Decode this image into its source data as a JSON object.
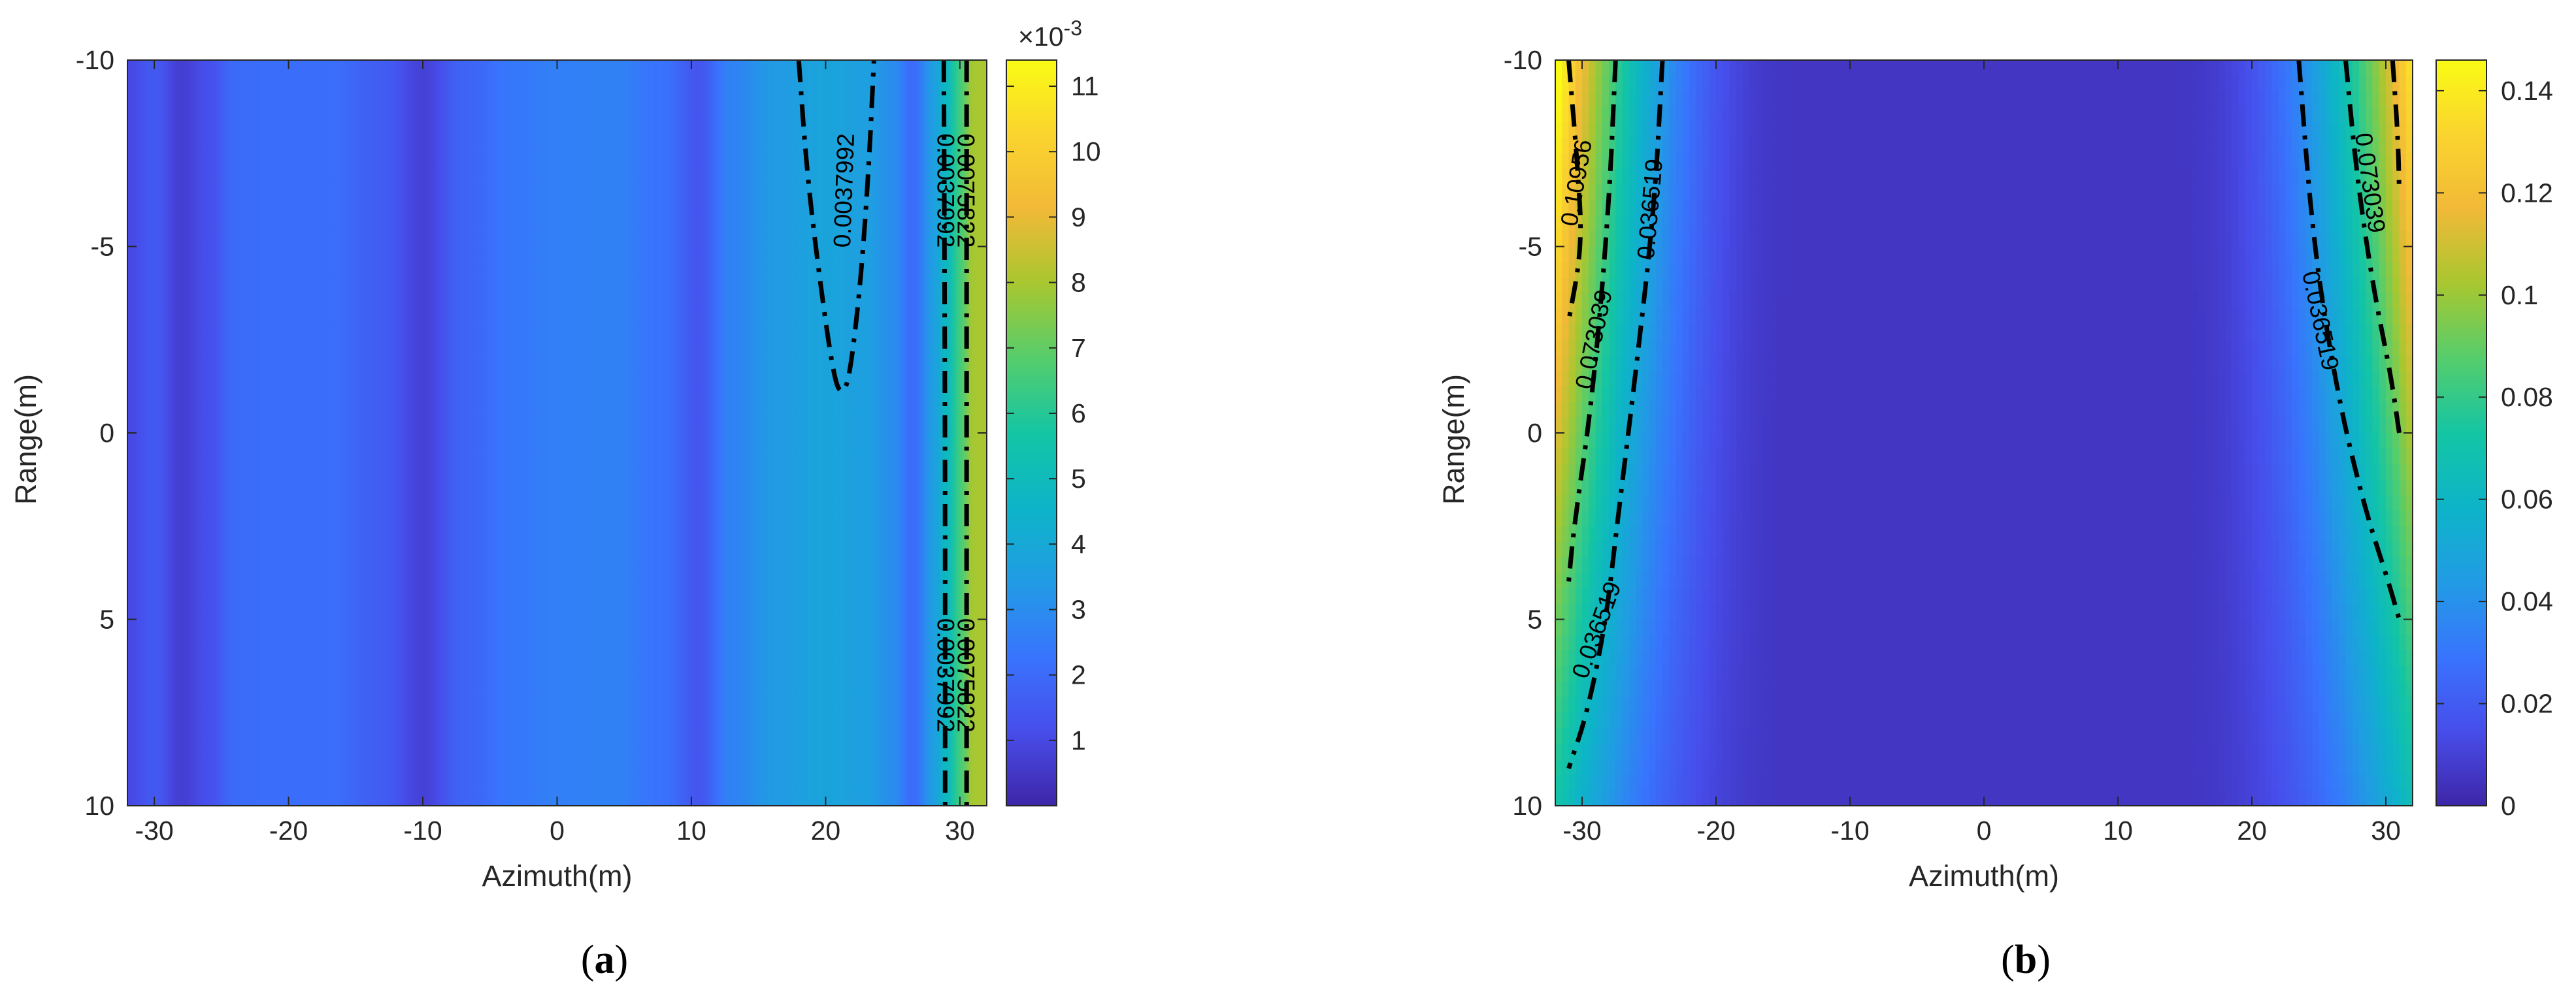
{
  "figure": {
    "panels": [
      {
        "prefix": "(",
        "letter": "a",
        "suffix": ")"
      },
      {
        "prefix": "(",
        "letter": "b",
        "suffix": ")"
      }
    ]
  },
  "chart_data": [
    {
      "type": "heatmap",
      "panel": "a",
      "title": "",
      "xlabel": "Azimuth(m)",
      "ylabel": "Range(m)",
      "xlim": [
        -32,
        32
      ],
      "ylim": [
        -10,
        10
      ],
      "y_direction": "reversed",
      "x_ticks": [
        "-30",
        "-20",
        "-10",
        "0",
        "10",
        "20",
        "30"
      ],
      "y_ticks": [
        "-10",
        "-5",
        "0",
        "5",
        "10"
      ],
      "colorbar": {
        "range": [
          0,
          11.4
        ],
        "ticks": [
          "1",
          "2",
          "3",
          "4",
          "5",
          "6",
          "7",
          "8",
          "9",
          "10",
          "11"
        ],
        "multiplier": "×10",
        "exponent": "-3",
        "colormap": "parula"
      },
      "field_profile_by_azimuth": [
        {
          "x": -32,
          "v": 1.0
        },
        {
          "x": -30,
          "v": 1.5
        },
        {
          "x": -28,
          "v": 0.7
        },
        {
          "x": -26,
          "v": 1.2
        },
        {
          "x": -24,
          "v": 2.0
        },
        {
          "x": -21,
          "v": 2.1
        },
        {
          "x": -17,
          "v": 2.1
        },
        {
          "x": -13,
          "v": 1.6
        },
        {
          "x": -10,
          "v": 0.8
        },
        {
          "x": -7,
          "v": 1.8
        },
        {
          "x": -3,
          "v": 2.4
        },
        {
          "x": 0,
          "v": 2.6
        },
        {
          "x": 4,
          "v": 2.7
        },
        {
          "x": 8,
          "v": 2.2
        },
        {
          "x": 10.5,
          "v": 1.4
        },
        {
          "x": 13,
          "v": 2.7
        },
        {
          "x": 16,
          "v": 3.4
        },
        {
          "x": 20,
          "v": 3.8
        },
        {
          "x": 23,
          "v": 3.6
        },
        {
          "x": 25,
          "v": 3.0
        },
        {
          "x": 26.5,
          "v": 2.0
        },
        {
          "x": 28,
          "v": 3.5
        },
        {
          "x": 29,
          "v": 4.8
        },
        {
          "x": 30,
          "v": 6.5
        },
        {
          "x": 31,
          "v": 8.0
        }
      ],
      "contours": [
        {
          "level": "0.0037992",
          "style": "dash-dot",
          "points": [
            [
              18,
              -10
            ],
            [
              18.6,
              -7
            ],
            [
              19.6,
              -4
            ],
            [
              20.6,
              -1.5
            ],
            [
              21.2,
              -1.0
            ],
            [
              21.8,
              -1.5
            ],
            [
              22.6,
              -4
            ],
            [
              23.2,
              -7
            ],
            [
              23.6,
              -10
            ]
          ]
        },
        {
          "level": "0.0037992",
          "style": "dash-dot",
          "points": [
            [
              28.8,
              -10
            ],
            [
              28.9,
              0
            ],
            [
              28.9,
              10
            ]
          ]
        },
        {
          "level": "0.0075822",
          "style": "dash-dot",
          "points": [
            [
              30.5,
              -10
            ],
            [
              30.5,
              0
            ],
            [
              30.5,
              10
            ]
          ]
        }
      ],
      "contour_labels": [
        {
          "text": "0.0037992",
          "x": 21.5,
          "y": -6.5,
          "rotate": -88
        },
        {
          "text": "0.0037992",
          "x": 28.8,
          "y": -6.5,
          "rotate": 90
        },
        {
          "text": "0.0075822",
          "x": 30.3,
          "y": -6.5,
          "rotate": 90
        },
        {
          "text": "0.0037992",
          "x": 28.8,
          "y": 6.5,
          "rotate": 90
        },
        {
          "text": "0.0075822",
          "x": 30.3,
          "y": 6.5,
          "rotate": 90
        }
      ]
    },
    {
      "type": "heatmap",
      "panel": "b",
      "title": "",
      "xlabel": "Azimuth(m)",
      "ylabel": "Range(m)",
      "xlim": [
        -32,
        32
      ],
      "ylim": [
        -10,
        10
      ],
      "y_direction": "reversed",
      "x_ticks": [
        "-30",
        "-20",
        "-10",
        "0",
        "10",
        "20",
        "30"
      ],
      "y_ticks": [
        "-10",
        "-5",
        "0",
        "5",
        "10"
      ],
      "colorbar": {
        "range": [
          0,
          0.146
        ],
        "ticks": [
          "0",
          "0.02",
          "0.04",
          "0.06",
          "0.08",
          "0.1",
          "0.12",
          "0.14"
        ],
        "colormap": "parula"
      },
      "field_model": "value rises toward both lateral edges; steeper at small |Range|",
      "contours": [
        {
          "level": "0.10956",
          "style": "dash-dot",
          "points": [
            [
              -31,
              -10
            ],
            [
              -30.3,
              -7
            ],
            [
              -30,
              -5
            ],
            [
              -31,
              -3
            ]
          ]
        },
        {
          "level": "0.073039",
          "style": "dash-dot",
          "points": [
            [
              -27.5,
              -10
            ],
            [
              -28,
              -6
            ],
            [
              -29.2,
              -1
            ],
            [
              -30.6,
              2.5
            ],
            [
              -31,
              4
            ]
          ]
        },
        {
          "level": "0.036519",
          "style": "dash-dot",
          "points": [
            [
              -24,
              -10
            ],
            [
              -24.6,
              -6
            ],
            [
              -26.2,
              -1
            ],
            [
              -27.4,
              2.5
            ],
            [
              -28.2,
              5
            ],
            [
              -29.6,
              7.5
            ],
            [
              -31,
              9
            ]
          ]
        },
        {
          "level": "0.036519",
          "style": "dash-dot",
          "points": [
            [
              23.5,
              -10
            ],
            [
              24.6,
              -5
            ],
            [
              26.4,
              -1
            ],
            [
              28.4,
              2
            ],
            [
              30.2,
              4
            ],
            [
              31,
              5
            ]
          ]
        },
        {
          "level": "0.073039",
          "style": "dash-dot",
          "points": [
            [
              27,
              -10
            ],
            [
              27.8,
              -7
            ],
            [
              29,
              -4
            ],
            [
              30.4,
              -1.5
            ],
            [
              31,
              0
            ]
          ]
        },
        {
          "level": "0.10956",
          "style": "dash-dot",
          "points": [
            [
              30.5,
              -10
            ],
            [
              30.9,
              -8
            ],
            [
              31,
              -6.5
            ]
          ]
        }
      ],
      "contour_labels": [
        {
          "text": "0.10956",
          "x": -30.3,
          "y": -6.7,
          "rotate": -80
        },
        {
          "text": "0.073039",
          "x": -29.0,
          "y": -2.5,
          "rotate": -78
        },
        {
          "text": "0.036519",
          "x": -24.8,
          "y": -6.0,
          "rotate": -85
        },
        {
          "text": "0.036519",
          "x": -28.8,
          "y": 5.3,
          "rotate": -70
        },
        {
          "text": "0.073039",
          "x": 28.7,
          "y": -6.7,
          "rotate": 82
        },
        {
          "text": "0.036519",
          "x": 25.0,
          "y": -3.0,
          "rotate": 78
        }
      ]
    }
  ]
}
